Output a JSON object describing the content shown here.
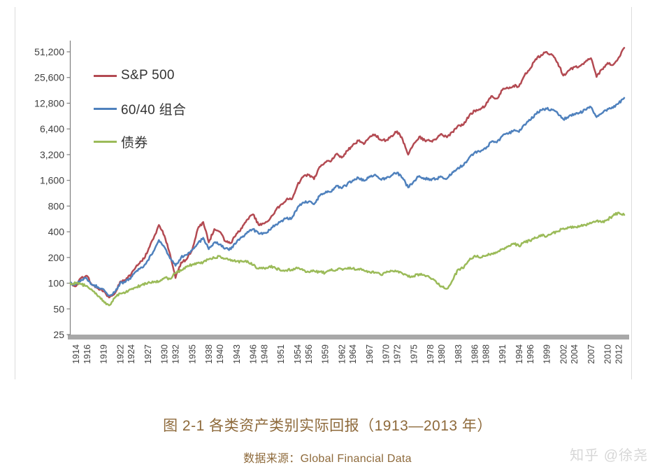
{
  "figure": {
    "caption": "图 2-1 各类资产类别实际回报（1913—2013 年）",
    "source_label": "数据来源：Global Financial Data",
    "watermark": "知乎 @徐尧",
    "caption_color": "#8e6a3b",
    "watermark_color": "#d7d7d7"
  },
  "chart_data": {
    "type": "line",
    "title": "各类资产类别实际回报 (1913—2013)",
    "xlabel": "",
    "ylabel": "",
    "grid": false,
    "legend_position": "top-left",
    "y_scale": "log2",
    "y_tick_values": [
      25,
      50,
      100,
      200,
      400,
      800,
      1600,
      3200,
      6400,
      12800,
      25600,
      51200
    ],
    "y_tick_labels": [
      "25",
      "50",
      "100",
      "200",
      "400",
      "800",
      "1,600",
      "3,200",
      "6,400",
      "12,800",
      "25,600",
      "51,200"
    ],
    "x_tick_labels": [
      "1914",
      "1916",
      "1919",
      "1922",
      "1924",
      "1927",
      "1930",
      "1932",
      "1935",
      "1938",
      "1940",
      "1943",
      "1946",
      "1948",
      "1951",
      "1954",
      "1956",
      "1959",
      "1962",
      "1964",
      "1967",
      "1970",
      "1972",
      "1975",
      "1978",
      "1980",
      "1983",
      "1986",
      "1988",
      "1991",
      "1994",
      "1996",
      "1999",
      "2002",
      "2004",
      "2007",
      "2010",
      "2012"
    ],
    "x_range": [
      1913,
      2013
    ],
    "x": [
      1913,
      1914,
      1915,
      1916,
      1917,
      1918,
      1919,
      1920,
      1921,
      1922,
      1923,
      1924,
      1925,
      1926,
      1927,
      1928,
      1929,
      1930,
      1931,
      1932,
      1933,
      1934,
      1935,
      1936,
      1937,
      1938,
      1939,
      1940,
      1941,
      1942,
      1943,
      1944,
      1945,
      1946,
      1947,
      1948,
      1949,
      1950,
      1951,
      1952,
      1953,
      1954,
      1955,
      1956,
      1957,
      1958,
      1959,
      1960,
      1961,
      1962,
      1963,
      1964,
      1965,
      1966,
      1967,
      1968,
      1969,
      1970,
      1971,
      1972,
      1973,
      1974,
      1975,
      1976,
      1977,
      1978,
      1979,
      1980,
      1981,
      1982,
      1983,
      1984,
      1985,
      1986,
      1987,
      1988,
      1989,
      1990,
      1991,
      1992,
      1993,
      1994,
      1995,
      1996,
      1997,
      1998,
      1999,
      2000,
      2001,
      2002,
      2003,
      2004,
      2005,
      2006,
      2007,
      2008,
      2009,
      2010,
      2011,
      2012,
      2013
    ],
    "series": [
      {
        "name": "S&P 500",
        "color": "#b34a52",
        "values": [
          100,
          92,
          116,
          122,
          95,
          88,
          80,
          68,
          75,
          104,
          108,
          128,
          162,
          182,
          238,
          330,
          480,
          360,
          220,
          115,
          175,
          190,
          245,
          430,
          520,
          300,
          430,
          400,
          310,
          295,
          380,
          440,
          560,
          640,
          480,
          500,
          560,
          700,
          830,
          950,
          960,
          1400,
          1750,
          1850,
          1650,
          2300,
          2600,
          2650,
          3250,
          2950,
          3550,
          4150,
          4650,
          4250,
          5100,
          5500,
          4800,
          4700,
          5300,
          6000,
          4800,
          3200,
          4300,
          5200,
          4700,
          4600,
          4800,
          5600,
          5100,
          5900,
          7000,
          7200,
          9100,
          10500,
          10800,
          12200,
          15500,
          14500,
          18300,
          19200,
          20500,
          20200,
          27000,
          32500,
          42000,
          47000,
          51000,
          47000,
          38000,
          27000,
          31000,
          34000,
          35000,
          39000,
          43000,
          26000,
          32000,
          38000,
          36000,
          44000,
          57000
        ]
      },
      {
        "name": "60/40 组合",
        "color": "#4f81bd",
        "values": [
          100,
          96,
          110,
          113,
          96,
          90,
          85,
          72,
          78,
          100,
          104,
          118,
          140,
          152,
          185,
          235,
          320,
          265,
          195,
          160,
          200,
          215,
          245,
          290,
          340,
          250,
          300,
          285,
          255,
          250,
          300,
          345,
          400,
          430,
          380,
          385,
          420,
          480,
          530,
          575,
          580,
          760,
          880,
          900,
          840,
          1050,
          1140,
          1170,
          1380,
          1290,
          1440,
          1600,
          1720,
          1580,
          1780,
          1870,
          1650,
          1680,
          1830,
          1970,
          1700,
          1320,
          1560,
          1800,
          1690,
          1650,
          1660,
          1760,
          1680,
          2000,
          2250,
          2400,
          2950,
          3400,
          3450,
          3750,
          4500,
          4450,
          5300,
          5600,
          6100,
          5900,
          7200,
          8100,
          9600,
          10600,
          11000,
          10700,
          9700,
          8300,
          9000,
          9600,
          9900,
          10700,
          11500,
          8800,
          9800,
          11000,
          11300,
          12800,
          14800
        ]
      },
      {
        "name": "债券",
        "color": "#9bbb59",
        "values": [
          100,
          99,
          97,
          93,
          82,
          70,
          62,
          55,
          67,
          76,
          78,
          85,
          90,
          96,
          101,
          102,
          105,
          116,
          112,
          132,
          140,
          155,
          165,
          172,
          176,
          190,
          198,
          208,
          193,
          183,
          180,
          179,
          182,
          163,
          148,
          150,
          158,
          151,
          140,
          141,
          144,
          149,
          142,
          136,
          139,
          135,
          132,
          141,
          143,
          147,
          147,
          149,
          147,
          141,
          136,
          133,
          126,
          133,
          139,
          138,
          129,
          119,
          121,
          128,
          123,
          115,
          105,
          92,
          86,
          108,
          145,
          150,
          185,
          210,
          198,
          208,
          222,
          228,
          252,
          268,
          292,
          272,
          308,
          312,
          338,
          368,
          352,
          388,
          402,
          438,
          448,
          458,
          468,
          478,
          502,
          538,
          518,
          558,
          618,
          672,
          630
        ]
      }
    ]
  }
}
